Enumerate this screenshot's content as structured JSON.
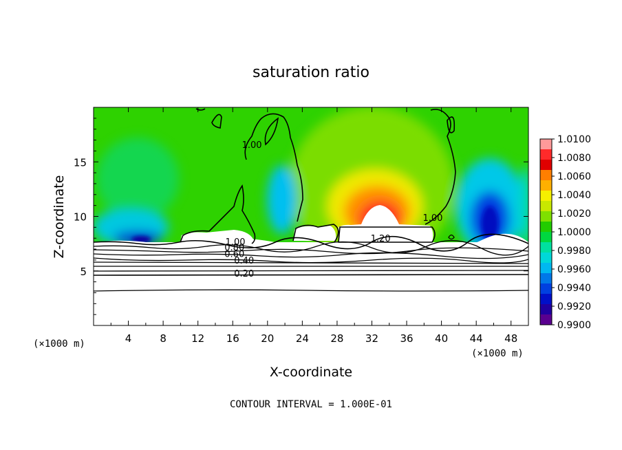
{
  "chart_data": {
    "type": "heatmap",
    "title": "saturation ratio",
    "xlabel": "X-coordinate",
    "ylabel": "Z-coordinate",
    "x_unit_left": "(×1000 m)",
    "x_unit_right": "(×1000 m)",
    "xlim": [
      0,
      50
    ],
    "ylim": [
      0,
      20
    ],
    "x_ticks": [
      4,
      8,
      12,
      16,
      20,
      24,
      28,
      32,
      36,
      40,
      44,
      48
    ],
    "y_ticks": [
      5,
      10,
      15
    ],
    "footer": "CONTOUR INTERVAL = 1.000E-01",
    "colorbar": {
      "ticks": [
        "1.0100",
        "1.0080",
        "1.0060",
        "1.0040",
        "1.0020",
        "1.0000",
        "0.9980",
        "0.9960",
        "0.9940",
        "0.9920",
        "0.9900"
      ],
      "colors": [
        "#ff9a9a",
        "#ff2a2a",
        "#e00000",
        "#ff7f00",
        "#ffb000",
        "#f5f000",
        "#c8e800",
        "#7fe000",
        "#22cc00",
        "#00d840",
        "#00e0a0",
        "#00d8d8",
        "#00b8f0",
        "#0078e8",
        "#0040e0",
        "#0010c8",
        "#2000a0",
        "#5a0090"
      ]
    },
    "contour_labels": [
      {
        "text": "1.00",
        "x": 18.2,
        "z": 16.6
      },
      {
        "text": "1.00",
        "x": 39.0,
        "z": 9.9
      },
      {
        "text": "1.20",
        "x": 33.0,
        "z": 8.0
      },
      {
        "text": "1.00",
        "x": 16.3,
        "z": 7.7
      },
      {
        "text": "0.80",
        "x": 16.2,
        "z": 7.2
      },
      {
        "text": "0.60",
        "x": 16.2,
        "z": 6.6
      },
      {
        "text": "0.40",
        "x": 17.3,
        "z": 6.0
      },
      {
        "text": "0.20",
        "x": 17.3,
        "z": 4.8
      }
    ],
    "field_features": {
      "background_value": 1.0005,
      "maxima": [
        {
          "x": 32.5,
          "z": 10.0,
          "value": 1.01
        }
      ],
      "minima": [
        {
          "x": 45.5,
          "z": 9.5,
          "value": 0.993
        },
        {
          "x": 5.0,
          "z": 8.0,
          "value": 0.992
        },
        {
          "x": 21.5,
          "z": 10.5,
          "value": 0.996
        }
      ]
    }
  }
}
